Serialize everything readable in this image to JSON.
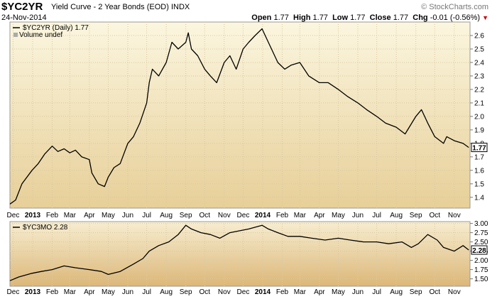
{
  "header": {
    "symbol": "$YC2YR",
    "description": "Yield Curve - 2 Year Bonds (EOD)",
    "exchange": "INDX",
    "date": "24-Nov-2014",
    "brand": "© StockCharts.com",
    "open_label": "Open",
    "open": "1.77",
    "high_label": "High",
    "high": "1.77",
    "low_label": "Low",
    "low": "1.77",
    "close_label": "Close",
    "close": "1.77",
    "chg_label": "Chg",
    "chg": "-0.01 (-0.56%)"
  },
  "colors": {
    "panel_top": "#fbf6df",
    "panel_bottom": "#dfbd7e",
    "line": "#000000",
    "arrow": "#cc0000"
  },
  "chart_data": [
    {
      "type": "line",
      "legend": "$YC2YR (Daily) 1.77",
      "volume_note": "Volume undef",
      "last_value": "1.77",
      "ylim": [
        1.32,
        2.7
      ],
      "yticks": [
        "1.4",
        "1.5",
        "1.6",
        "1.7",
        "1.8",
        "1.9",
        "2.0",
        "2.1",
        "2.2",
        "2.3",
        "2.4",
        "2.5",
        "2.6"
      ],
      "x_labels": [
        "Dec",
        "2013",
        "Feb",
        "Mar",
        "Apr",
        "May",
        "Jun",
        "Jul",
        "Aug",
        "Sep",
        "Oct",
        "Nov",
        "Dec",
        "2014",
        "Feb",
        "Mar",
        "Apr",
        "May",
        "Jun",
        "Jul",
        "Aug",
        "Sep",
        "Oct",
        "Nov"
      ],
      "series": [
        {
          "x": [
            "2012-11-26",
            "2012-12-05",
            "2012-12-15",
            "2012-12-31",
            "2013-01-10",
            "2013-01-20",
            "2013-02-01",
            "2013-02-10",
            "2013-02-20",
            "2013-03-01",
            "2013-03-10",
            "2013-03-20",
            "2013-04-01",
            "2013-04-05",
            "2013-04-15",
            "2013-04-25",
            "2013-05-01",
            "2013-05-10",
            "2013-05-20",
            "2013-06-01",
            "2013-06-10",
            "2013-06-20",
            "2013-07-01",
            "2013-07-05",
            "2013-07-10",
            "2013-07-20",
            "2013-08-01",
            "2013-08-10",
            "2013-08-20",
            "2013-09-01",
            "2013-09-05",
            "2013-09-10",
            "2013-09-20",
            "2013-10-01",
            "2013-10-10",
            "2013-10-20",
            "2013-11-01",
            "2013-11-10",
            "2013-11-20",
            "2013-12-01",
            "2013-12-10",
            "2013-12-20",
            "2013-12-31",
            "2014-01-05",
            "2014-01-15",
            "2014-01-25",
            "2014-02-05",
            "2014-02-15",
            "2014-03-01",
            "2014-03-15",
            "2014-04-01",
            "2014-04-15",
            "2014-05-01",
            "2014-05-15",
            "2014-06-01",
            "2014-06-15",
            "2014-07-01",
            "2014-07-15",
            "2014-08-01",
            "2014-08-15",
            "2014-09-01",
            "2014-09-10",
            "2014-09-20",
            "2014-10-01",
            "2014-10-15",
            "2014-10-20",
            "2014-11-01",
            "2014-11-15",
            "2014-11-24"
          ],
          "values": [
            1.35,
            1.38,
            1.5,
            1.6,
            1.65,
            1.72,
            1.78,
            1.74,
            1.76,
            1.73,
            1.75,
            1.7,
            1.68,
            1.58,
            1.5,
            1.48,
            1.55,
            1.62,
            1.65,
            1.8,
            1.85,
            1.95,
            2.1,
            2.25,
            2.35,
            2.3,
            2.4,
            2.55,
            2.5,
            2.55,
            2.62,
            2.5,
            2.45,
            2.35,
            2.3,
            2.25,
            2.4,
            2.45,
            2.35,
            2.5,
            2.55,
            2.6,
            2.65,
            2.6,
            2.5,
            2.4,
            2.35,
            2.38,
            2.4,
            2.3,
            2.25,
            2.25,
            2.2,
            2.15,
            2.1,
            2.05,
            2.0,
            1.95,
            1.92,
            1.87,
            2.0,
            2.05,
            1.95,
            1.85,
            1.8,
            1.85,
            1.82,
            1.8,
            1.77
          ]
        }
      ]
    },
    {
      "type": "line",
      "legend": "$YC3MO 2.28",
      "last_value": "2.28",
      "ylim": [
        1.3,
        3.05
      ],
      "yticks": [
        "1.50",
        "1.75",
        "2.00",
        "2.25",
        "2.50",
        "2.75",
        "3.00"
      ],
      "x_labels": [
        "Dec",
        "2013",
        "Feb",
        "Mar",
        "Apr",
        "May",
        "Jun",
        "Jul",
        "Aug",
        "Sep",
        "Oct",
        "Nov",
        "Dec",
        "2014",
        "Feb",
        "Mar",
        "Apr",
        "May",
        "Jun",
        "Jul",
        "Aug",
        "Sep",
        "Oct",
        "Nov"
      ],
      "series": [
        {
          "x": [
            "2012-11-26",
            "2012-12-10",
            "2012-12-31",
            "2013-01-15",
            "2013-02-01",
            "2013-02-20",
            "2013-03-10",
            "2013-04-01",
            "2013-04-20",
            "2013-05-01",
            "2013-05-20",
            "2013-06-10",
            "2013-06-25",
            "2013-07-05",
            "2013-07-20",
            "2013-08-05",
            "2013-08-20",
            "2013-09-01",
            "2013-09-10",
            "2013-09-25",
            "2013-10-10",
            "2013-10-25",
            "2013-11-10",
            "2013-11-25",
            "2013-12-10",
            "2013-12-31",
            "2014-01-10",
            "2014-01-25",
            "2014-02-10",
            "2014-03-01",
            "2014-03-20",
            "2014-04-10",
            "2014-05-01",
            "2014-05-20",
            "2014-06-10",
            "2014-07-01",
            "2014-07-20",
            "2014-08-10",
            "2014-08-25",
            "2014-09-05",
            "2014-09-20",
            "2014-10-05",
            "2014-10-15",
            "2014-11-01",
            "2014-11-15",
            "2014-11-24"
          ],
          "values": [
            1.45,
            1.55,
            1.65,
            1.7,
            1.75,
            1.85,
            1.8,
            1.75,
            1.7,
            1.62,
            1.7,
            1.9,
            2.05,
            2.25,
            2.4,
            2.5,
            2.7,
            2.95,
            2.85,
            2.75,
            2.7,
            2.6,
            2.75,
            2.8,
            2.85,
            2.95,
            2.85,
            2.75,
            2.65,
            2.65,
            2.6,
            2.55,
            2.6,
            2.55,
            2.5,
            2.5,
            2.45,
            2.5,
            2.35,
            2.45,
            2.7,
            2.55,
            2.35,
            2.25,
            2.4,
            2.28
          ]
        }
      ]
    }
  ]
}
